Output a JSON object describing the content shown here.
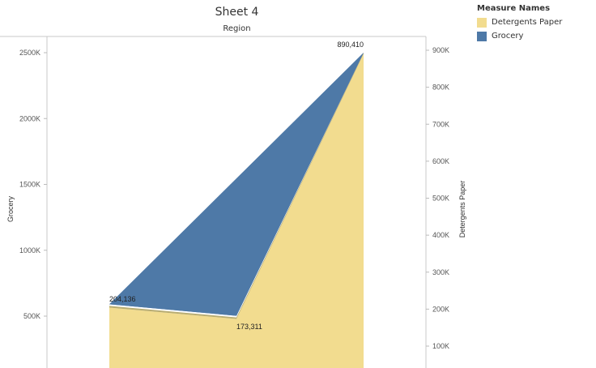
{
  "title": "Sheet 4",
  "column_header": "Region",
  "legend": {
    "title": "Measure Names",
    "items": [
      {
        "label": "Detergents Paper",
        "color": "#F2DC8F"
      },
      {
        "label": "Grocery",
        "color": "#4E79A7"
      }
    ]
  },
  "chart_data": {
    "type": "area",
    "categories": [
      "",
      "",
      ""
    ],
    "series": [
      {
        "name": "Grocery",
        "axis": "left",
        "values": [
          578000,
          490000,
          2500000
        ],
        "color": "#4E79A7"
      },
      {
        "name": "Detergents Paper",
        "axis": "right",
        "values": [
          204136,
          173311,
          890410
        ],
        "color": "#F2DC8F"
      }
    ],
    "data_labels": [
      "204,136",
      "173,311",
      "890,410"
    ],
    "left_axis": {
      "label": "Grocery",
      "ticks": [
        500000,
        1000000,
        1500000,
        2000000,
        2500000
      ],
      "tick_labels": [
        "500K",
        "1000K",
        "1500K",
        "2000K",
        "2500K"
      ]
    },
    "right_axis": {
      "label": "Detergents Paper",
      "ticks": [
        100000,
        200000,
        300000,
        400000,
        500000,
        600000,
        700000,
        800000,
        900000
      ],
      "tick_labels": [
        "100K",
        "200K",
        "300K",
        "400K",
        "500K",
        "600K",
        "700K",
        "800K",
        "900K"
      ]
    },
    "grid": false
  }
}
